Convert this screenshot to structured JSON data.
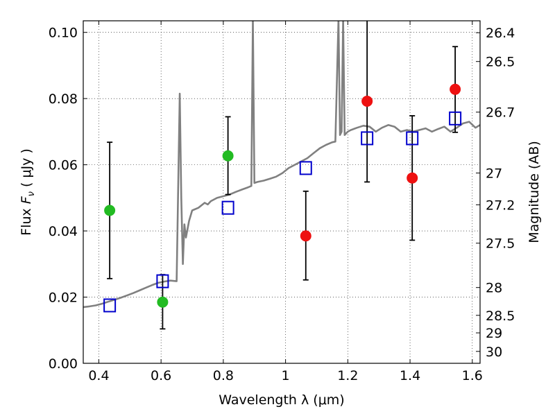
{
  "chart_data": {
    "type": "scatter",
    "xlabel": "Wavelength  λ (μm)",
    "ylabel": "Flux  F_ν  ( μJy )",
    "ylabel_parts": {
      "pre": "Flux  ",
      "var": "F",
      "sub": "ν",
      "post": "  ( μJy )"
    },
    "y2label": "Magnitude (AB)",
    "xlim": [
      0.35,
      1.625
    ],
    "ylim": [
      0.0,
      0.1035
    ],
    "x_ticks": [
      0.4,
      0.6,
      0.8,
      1.0,
      1.2,
      1.4,
      1.6
    ],
    "x_tick_labels": [
      "0.4",
      "0.6",
      "0.8",
      "1",
      "1.2",
      "1.4",
      "1.6"
    ],
    "y_ticks": [
      0.0,
      0.02,
      0.04,
      0.06,
      0.08,
      0.1
    ],
    "y_tick_labels": [
      "0.00",
      "0.02",
      "0.04",
      "0.06",
      "0.08",
      "0.10"
    ],
    "y2_ticks": [
      {
        "label": "26.4",
        "flux": 0.0999
      },
      {
        "label": "26.5",
        "flux": 0.0912
      },
      {
        "label": "26.7",
        "flux": 0.0759
      },
      {
        "label": "27",
        "flux": 0.0575
      },
      {
        "label": "27.2",
        "flux": 0.0479
      },
      {
        "label": "27.5",
        "flux": 0.0363
      },
      {
        "label": "28",
        "flux": 0.0229
      },
      {
        "label": "28.5",
        "flux": 0.0145
      },
      {
        "label": "29",
        "flux": 0.0092
      },
      {
        "label": "30",
        "flux": 0.0036
      }
    ],
    "grid": true,
    "series": [
      {
        "kind": "line",
        "color": "#808080",
        "x": [
          0.35,
          0.37,
          0.39,
          0.41,
          0.43,
          0.45,
          0.47,
          0.49,
          0.51,
          0.53,
          0.55,
          0.57,
          0.59,
          0.61,
          0.63,
          0.65,
          0.66,
          0.665,
          0.67,
          0.675,
          0.68,
          0.69,
          0.7,
          0.72,
          0.74,
          0.75,
          0.76,
          0.78,
          0.8,
          0.82,
          0.84,
          0.86,
          0.88,
          0.89,
          0.895,
          0.9,
          0.91,
          0.93,
          0.95,
          0.97,
          0.99,
          1.01,
          1.03,
          1.05,
          1.07,
          1.09,
          1.11,
          1.13,
          1.15,
          1.16,
          1.17,
          1.175,
          1.18,
          1.185,
          1.19,
          1.2,
          1.21,
          1.23,
          1.25,
          1.27,
          1.29,
          1.31,
          1.33,
          1.35,
          1.37,
          1.39,
          1.41,
          1.43,
          1.45,
          1.47,
          1.49,
          1.51,
          1.53,
          1.55,
          1.57,
          1.59,
          1.61,
          1.625
        ],
        "values": [
          0.017,
          0.0172,
          0.0175,
          0.018,
          0.0186,
          0.0192,
          0.0198,
          0.0205,
          0.0212,
          0.022,
          0.0228,
          0.0236,
          0.0243,
          0.0247,
          0.025,
          0.0248,
          0.0815,
          0.05,
          0.03,
          0.042,
          0.038,
          0.043,
          0.0462,
          0.047,
          0.0485,
          0.048,
          0.049,
          0.05,
          0.0505,
          0.051,
          0.0518,
          0.0525,
          0.0532,
          0.0536,
          0.104,
          0.0545,
          0.0548,
          0.0552,
          0.0558,
          0.0564,
          0.0575,
          0.059,
          0.06,
          0.061,
          0.062,
          0.0635,
          0.065,
          0.066,
          0.0668,
          0.067,
          0.104,
          0.069,
          0.07,
          0.104,
          0.069,
          0.07,
          0.0705,
          0.0712,
          0.0718,
          0.0715,
          0.07,
          0.0712,
          0.072,
          0.0715,
          0.07,
          0.0705,
          0.07,
          0.0705,
          0.071,
          0.07,
          0.0708,
          0.0715,
          0.07,
          0.0712,
          0.0725,
          0.073,
          0.0712,
          0.072
        ]
      },
      {
        "kind": "open-square",
        "color": "#0000cc",
        "x": [
          0.435,
          0.605,
          0.815,
          1.065,
          1.262,
          1.407,
          1.545
        ],
        "values": [
          0.0175,
          0.0248,
          0.047,
          0.059,
          0.068,
          0.068,
          0.074
        ]
      },
      {
        "kind": "filled-circle",
        "color": "#22bb22",
        "x": [
          0.435,
          0.605,
          0.815
        ],
        "values": [
          0.0462,
          0.0185,
          0.0627
        ],
        "err_low": [
          0.0256,
          0.0104,
          0.051
        ],
        "err_high": [
          0.0668,
          0.0268,
          0.0745
        ]
      },
      {
        "kind": "filled-circle",
        "color": "#ee1111",
        "x": [
          1.065,
          1.262,
          1.407,
          1.545
        ],
        "values": [
          0.0385,
          0.0792,
          0.056,
          0.0828
        ],
        "err_low": [
          0.0252,
          0.0548,
          0.0372,
          0.0698
        ],
        "err_high": [
          0.052,
          0.104,
          0.0748,
          0.0957
        ]
      }
    ]
  }
}
